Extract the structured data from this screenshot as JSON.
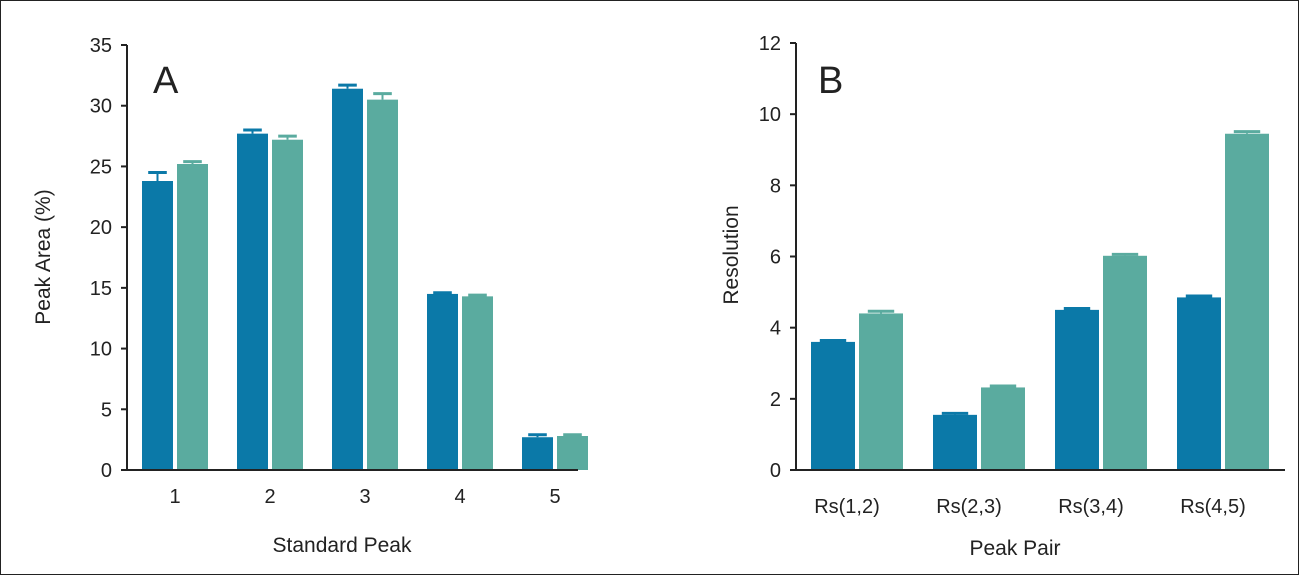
{
  "colors": {
    "series1": "#0b79a8",
    "series2": "#5aab9f",
    "axis": "#222222"
  },
  "chart_data": [
    {
      "type": "bar",
      "panel_label": "A",
      "xlabel": "Standard Peak",
      "ylabel": "Peak Area (%)",
      "ylim": [
        0,
        35
      ],
      "yticks": [
        0,
        5,
        10,
        15,
        20,
        25,
        30,
        35
      ],
      "categories": [
        "1",
        "2",
        "3",
        "4",
        "5"
      ],
      "series": [
        {
          "values": [
            23.8,
            27.7,
            31.4,
            14.5,
            2.7
          ],
          "errors": [
            0.7,
            0.3,
            0.3,
            0.1,
            0.2
          ]
        },
        {
          "values": [
            25.2,
            27.2,
            30.5,
            14.3,
            2.8
          ],
          "errors": [
            0.2,
            0.3,
            0.5,
            0.1,
            0.1
          ]
        }
      ],
      "grid": false
    },
    {
      "type": "bar",
      "panel_label": "B",
      "xlabel": "Peak Pair",
      "ylabel": "Resolution",
      "ylim": [
        0,
        12
      ],
      "yticks": [
        0,
        2,
        4,
        6,
        8,
        10,
        12
      ],
      "categories": [
        "Rs(1,2)",
        "Rs(2,3)",
        "Rs(3,4)",
        "Rs(4,5)"
      ],
      "series": [
        {
          "values": [
            3.6,
            1.55,
            4.5,
            4.85
          ],
          "errors": [
            0.04,
            0.04,
            0.04,
            0.04
          ]
        },
        {
          "values": [
            4.4,
            2.32,
            6.02,
            9.45
          ],
          "errors": [
            0.06,
            0.04,
            0.04,
            0.06
          ]
        }
      ],
      "grid": false
    }
  ]
}
